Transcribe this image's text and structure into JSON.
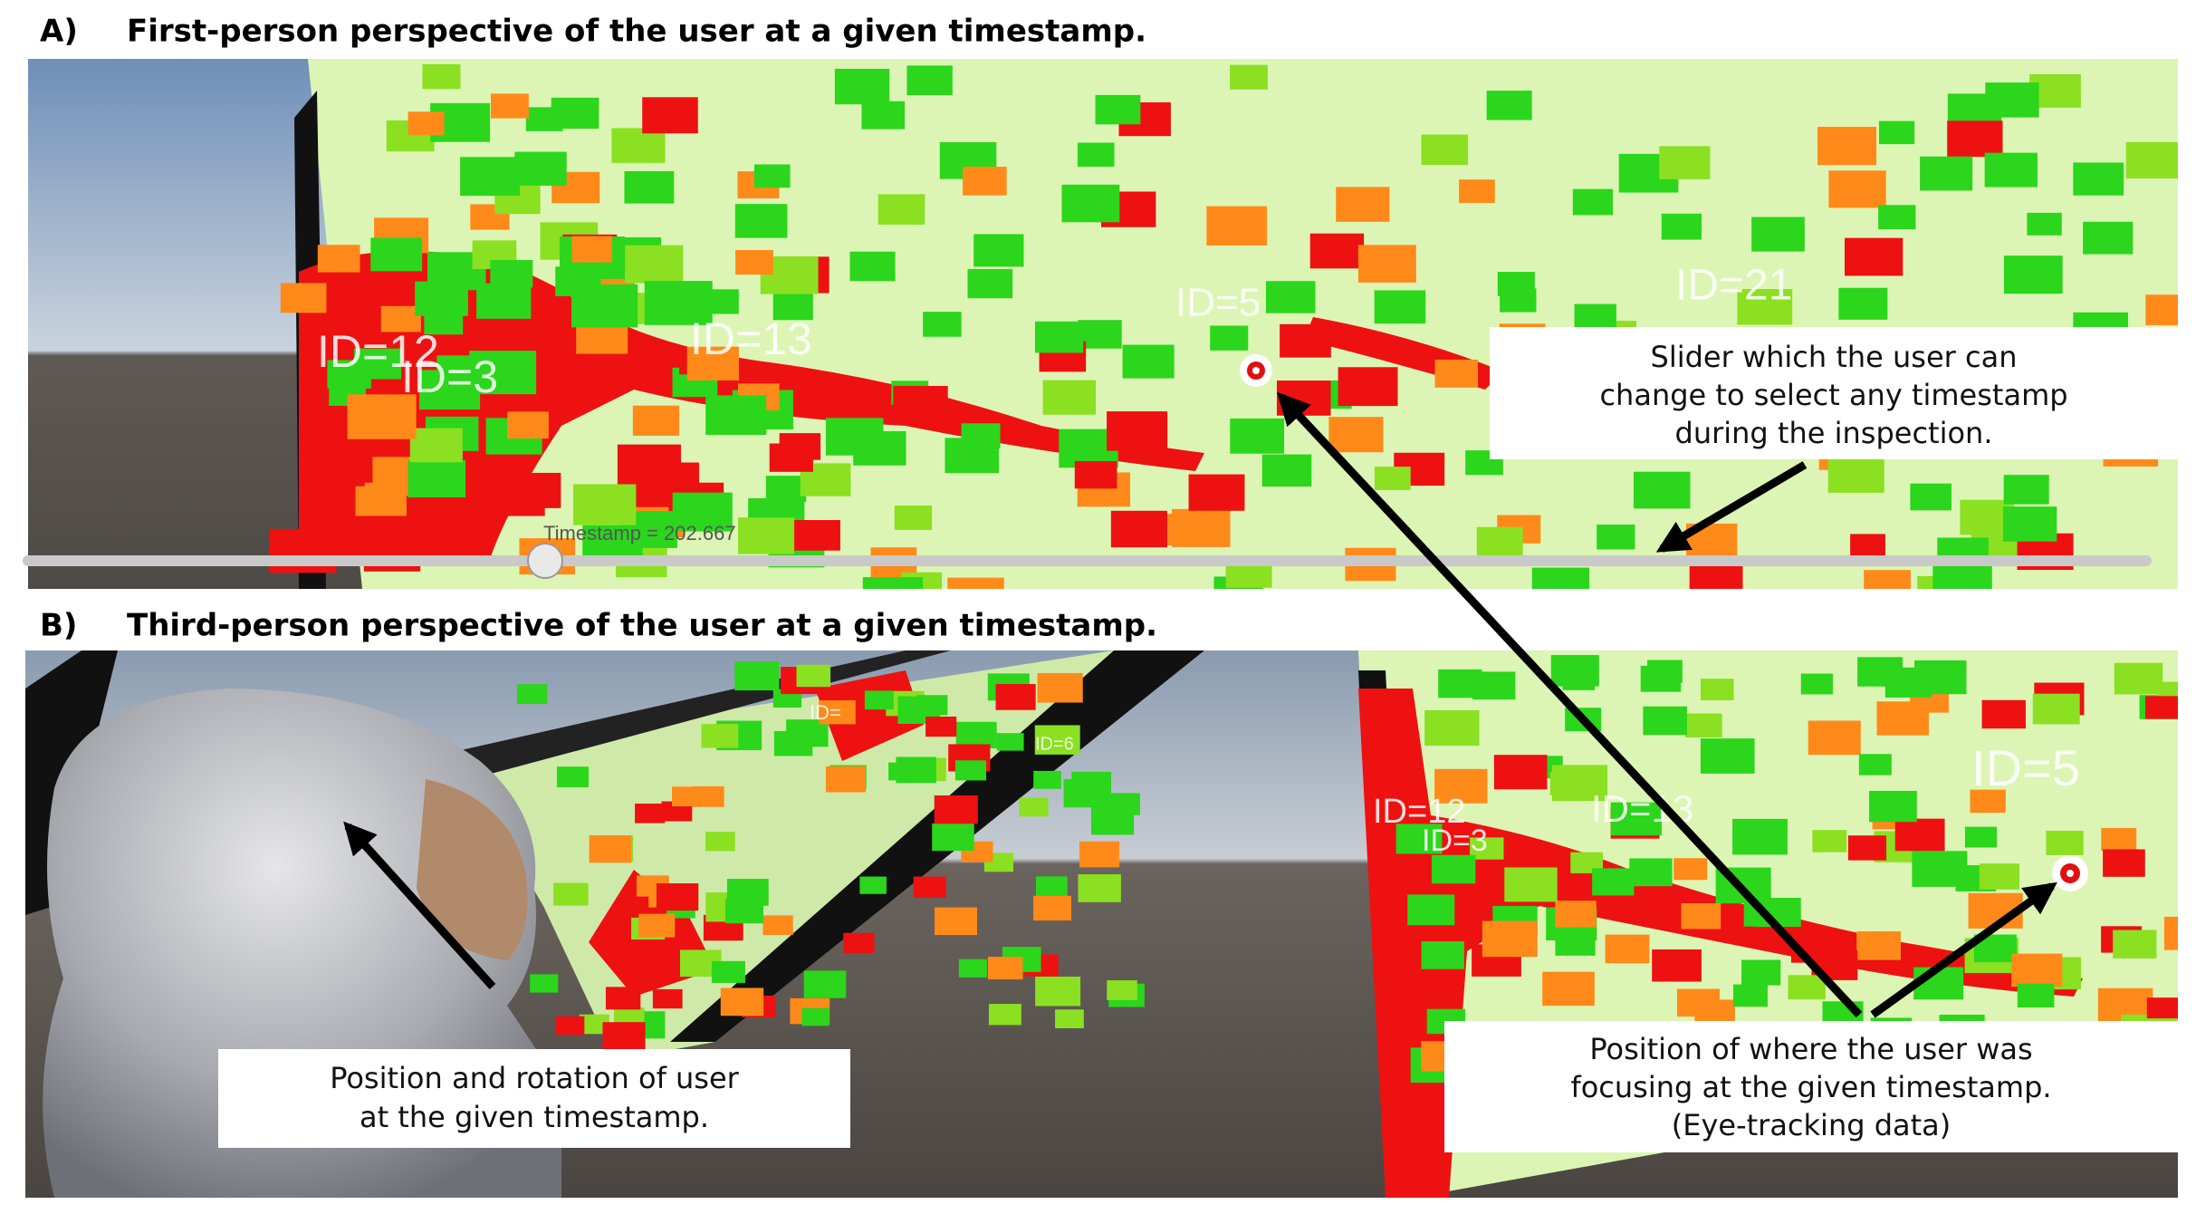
{
  "panel_a": {
    "label": "A)",
    "title": "First-person perspective of the user at a given timestamp.",
    "ids": [
      "ID=12",
      "ID=3",
      "ID=13",
      "ID=5",
      "ID=21"
    ],
    "timestamp": "Timestamp = 202.667"
  },
  "panel_b": {
    "label": "B)",
    "title": "Third-person perspective of the user at a given timestamp.",
    "ids": [
      "ID=12",
      "ID=3",
      "ID=13",
      "ID=5",
      "ID=6",
      "ID="
    ]
  },
  "annotations": [
    {
      "lines": [
        "Slider which the user can",
        "change to select any timestamp",
        "during the inspection."
      ]
    },
    {
      "lines": [
        "Position and rotation of user",
        "at the given timestamp."
      ]
    },
    {
      "lines": [
        "Position of where the user was",
        "focusing at the given timestamp.",
        "(Eye-tracking data)"
      ]
    }
  ]
}
